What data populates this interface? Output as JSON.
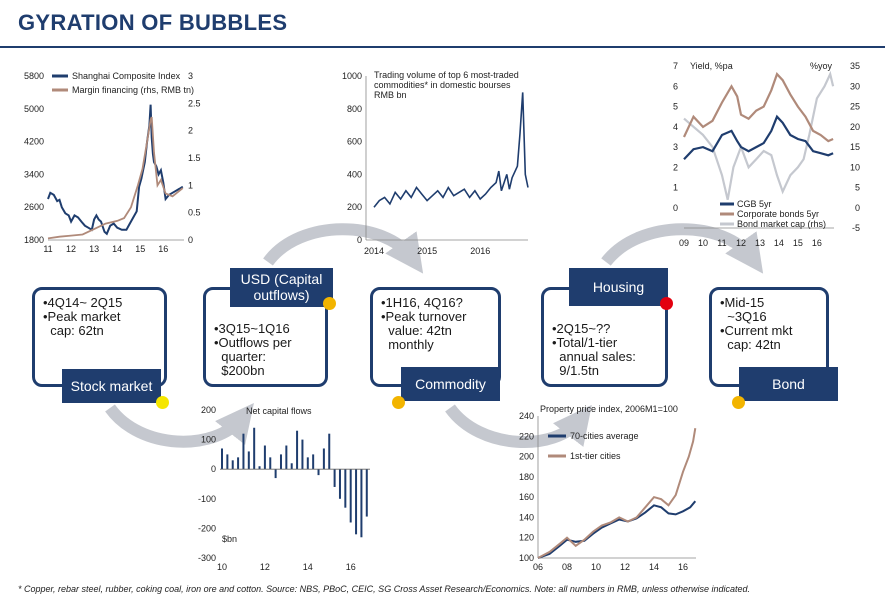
{
  "title": "GYRATION OF BUBBLES",
  "footnote": "* Copper, rebar steel, rubber, coking coal, iron ore and cotton. Source: NBS, PBoC, CEIC, SG Cross Asset Research/Economics. Note: all numbers in RMB, unless otherwise indicated.",
  "colors": {
    "navy": "#1f3d6e",
    "tan": "#b08a7a",
    "gray": "#c5c8cf",
    "yellow": "#f5e600",
    "orange": "#f2b400",
    "red": "#e3000f"
  },
  "stages": [
    {
      "label": "Stock market",
      "lines": [
        "•4Q14~ 2Q15",
        "•Peak market",
        "  cap: 62tn"
      ],
      "dot": "yellow"
    },
    {
      "label": "USD (Capital outflows)",
      "label_lines": [
        "USD (Capital",
        "outflows)"
      ],
      "lines": [
        "•3Q15~1Q16",
        "•Outflows per",
        "  quarter:",
        "  $200bn"
      ],
      "dot": "orange"
    },
    {
      "label": "Commodity",
      "lines": [
        "•1H16, 4Q16?",
        "•Peak turnover",
        "  value: 42tn",
        "  monthly"
      ],
      "dot": "orange"
    },
    {
      "label": "Housing",
      "lines": [
        "•2Q15~??",
        "•Total/1-tier",
        "  annual sales:",
        "  9/1.5tn"
      ],
      "dot": "red"
    },
    {
      "label": "Bond",
      "lines": [
        "•Mid-15",
        "  ~3Q16",
        "•Current mkt",
        "  cap: 42tn"
      ],
      "dot": "orange"
    }
  ],
  "chart_data": [
    {
      "id": "stock",
      "type": "line",
      "x_ticks": [
        "11",
        "12",
        "13",
        "14",
        "15",
        "16"
      ],
      "x_range": [
        2011,
        2016.9
      ],
      "y_left_ticks": [
        "1800",
        "2600",
        "3400",
        "4200",
        "5000",
        "5800"
      ],
      "ylim_left": [
        1800,
        5800
      ],
      "y_right_ticks": [
        "0",
        "0.5",
        "1",
        "1.5",
        "2",
        "2.5",
        "3"
      ],
      "ylim_right": [
        0,
        3
      ],
      "series": [
        {
          "name": "Shanghai Composite Index",
          "axis": "left",
          "color": "#1f3d6e",
          "x": [
            2011.0,
            2011.1,
            2011.25,
            2011.4,
            2011.5,
            2011.6,
            2011.75,
            2011.9,
            2012.0,
            2012.15,
            2012.3,
            2012.45,
            2012.6,
            2012.75,
            2012.9,
            2013.0,
            2013.1,
            2013.2,
            2013.3,
            2013.45,
            2013.55,
            2013.7,
            2013.85,
            2014.0,
            2014.2,
            2014.4,
            2014.55,
            2014.7,
            2014.85,
            2014.95,
            2015.05,
            2015.2,
            2015.3,
            2015.4,
            2015.45,
            2015.5,
            2015.55,
            2015.6,
            2015.7,
            2015.8,
            2015.9,
            2016.0,
            2016.1,
            2016.25,
            2016.4,
            2016.55,
            2016.7,
            2016.85
          ],
          "y": [
            2800,
            2950,
            2900,
            2750,
            2780,
            2600,
            2450,
            2400,
            2250,
            2400,
            2350,
            2250,
            2150,
            2100,
            2050,
            2300,
            2400,
            2300,
            2250,
            2000,
            1950,
            2150,
            2200,
            2100,
            2050,
            2050,
            2200,
            2350,
            2500,
            3100,
            3300,
            3700,
            4200,
            4600,
            5100,
            4300,
            3900,
            3700,
            3600,
            3400,
            3500,
            3200,
            2800,
            2900,
            2950,
            3000,
            3050,
            3100
          ]
        },
        {
          "name": "Margin financing (rhs, RMB tn)",
          "axis": "right",
          "color": "#b08a7a",
          "x": [
            2011.0,
            2011.5,
            2012.0,
            2012.5,
            2013.0,
            2013.5,
            2014.0,
            2014.3,
            2014.6,
            2014.9,
            2015.1,
            2015.3,
            2015.45,
            2015.5,
            2015.6,
            2015.75,
            2015.9,
            2016.1,
            2016.4,
            2016.7,
            2016.85
          ],
          "y": [
            0.03,
            0.06,
            0.08,
            0.1,
            0.2,
            0.3,
            0.35,
            0.4,
            0.6,
            1.0,
            1.3,
            1.8,
            2.2,
            2.25,
            1.6,
            1.0,
            1.1,
            0.85,
            0.8,
            0.9,
            0.95
          ]
        }
      ]
    },
    {
      "id": "commodity",
      "type": "line",
      "annotation": [
        "Trading volume of top 6 most-traded",
        "commodities* in domestic bourses",
        "RMB bn"
      ],
      "x_ticks": [
        "2014",
        "2015",
        "2016"
      ],
      "x_range": [
        2014,
        2016.9
      ],
      "y_ticks": [
        "0",
        "200",
        "400",
        "600",
        "800",
        "1000"
      ],
      "ylim": [
        0,
        1000
      ],
      "series": [
        {
          "name": "Trading volume",
          "color": "#1f3d6e",
          "x": [
            2014.0,
            2014.1,
            2014.2,
            2014.3,
            2014.4,
            2014.5,
            2014.6,
            2014.7,
            2014.8,
            2014.9,
            2015.0,
            2015.1,
            2015.2,
            2015.3,
            2015.4,
            2015.5,
            2015.6,
            2015.7,
            2015.8,
            2015.9,
            2016.0,
            2016.1,
            2016.2,
            2016.3,
            2016.35,
            2016.4,
            2016.45,
            2016.5,
            2016.55,
            2016.6,
            2016.7,
            2016.75,
            2016.8,
            2016.85,
            2016.9
          ],
          "y": [
            200,
            240,
            260,
            220,
            290,
            250,
            300,
            260,
            320,
            280,
            240,
            270,
            300,
            260,
            320,
            270,
            290,
            310,
            260,
            300,
            250,
            280,
            320,
            350,
            420,
            300,
            350,
            400,
            310,
            380,
            450,
            650,
            900,
            400,
            320
          ]
        }
      ]
    },
    {
      "id": "bond",
      "type": "line",
      "y_left_label": "Yield, %pa",
      "y_right_label": "%yoy",
      "x_ticks": [
        "09",
        "10",
        "11",
        "12",
        "13",
        "14",
        "15",
        "16"
      ],
      "x_range": [
        2009,
        2016.9
      ],
      "y_left_ticks": [
        "0",
        "1",
        "2",
        "3",
        "4",
        "5",
        "6",
        "7"
      ],
      "ylim_left": [
        0,
        7
      ],
      "y_right_ticks": [
        "-5",
        "0",
        "5",
        "10",
        "15",
        "20",
        "25",
        "30",
        "35"
      ],
      "ylim_right": [
        -5,
        35
      ],
      "series": [
        {
          "name": "CGB 5yr",
          "axis": "left",
          "color": "#1f3d6e",
          "x": [
            2009.0,
            2009.5,
            2010.0,
            2010.5,
            2011.0,
            2011.5,
            2011.8,
            2012.0,
            2012.4,
            2012.8,
            2013.2,
            2013.6,
            2013.9,
            2014.2,
            2014.6,
            2015.0,
            2015.4,
            2015.8,
            2016.2,
            2016.6,
            2016.85
          ],
          "y": [
            2.4,
            2.9,
            3.0,
            2.8,
            3.6,
            3.8,
            3.3,
            3.0,
            2.8,
            3.0,
            3.2,
            3.8,
            4.5,
            4.2,
            3.6,
            3.4,
            3.3,
            2.8,
            2.7,
            2.6,
            2.7
          ]
        },
        {
          "name": "Corporate bonds 5yr",
          "axis": "left",
          "color": "#b08a7a",
          "x": [
            2009.0,
            2009.5,
            2010.0,
            2010.5,
            2011.0,
            2011.5,
            2011.8,
            2012.0,
            2012.4,
            2012.8,
            2013.2,
            2013.6,
            2013.9,
            2014.2,
            2014.6,
            2015.0,
            2015.4,
            2015.8,
            2016.2,
            2016.6,
            2016.85
          ],
          "y": [
            3.5,
            4.5,
            4.0,
            4.3,
            5.2,
            6.0,
            5.5,
            4.6,
            4.4,
            4.8,
            5.0,
            5.8,
            6.6,
            6.3,
            5.6,
            5.0,
            4.5,
            3.8,
            3.6,
            3.3,
            3.4
          ]
        },
        {
          "name": "Bond market cap (rhs)",
          "axis": "right",
          "color": "#c5c8cf",
          "x": [
            2009.0,
            2009.5,
            2010.0,
            2010.5,
            2011.0,
            2011.3,
            2011.6,
            2012.0,
            2012.4,
            2012.8,
            2013.2,
            2013.6,
            2013.9,
            2014.2,
            2014.6,
            2015.0,
            2015.3,
            2015.6,
            2016.0,
            2016.4,
            2016.7,
            2016.85
          ],
          "y": [
            22,
            20,
            18,
            15,
            8,
            2,
            10,
            15,
            10,
            12,
            14,
            13,
            8,
            4,
            8,
            10,
            12,
            18,
            27,
            30,
            33,
            30
          ]
        }
      ]
    },
    {
      "id": "capital",
      "type": "bar",
      "title": "Net capital flows",
      "ylabel": "$bn",
      "x_ticks": [
        "10",
        "12",
        "14",
        "16"
      ],
      "x_range": [
        2010,
        2016.9
      ],
      "y_ticks": [
        "-300",
        "-200",
        "-100",
        "0",
        "100",
        "200"
      ],
      "ylim": [
        -300,
        200
      ],
      "bar_x": [
        2010.0,
        2010.25,
        2010.5,
        2010.75,
        2011.0,
        2011.25,
        2011.5,
        2011.75,
        2012.0,
        2012.25,
        2012.5,
        2012.75,
        2013.0,
        2013.25,
        2013.5,
        2013.75,
        2014.0,
        2014.25,
        2014.5,
        2014.75,
        2015.0,
        2015.25,
        2015.5,
        2015.75,
        2016.0,
        2016.25,
        2016.5,
        2016.75
      ],
      "values": [
        70,
        50,
        30,
        40,
        120,
        60,
        140,
        10,
        80,
        40,
        -30,
        50,
        80,
        20,
        130,
        100,
        40,
        50,
        -20,
        70,
        120,
        -60,
        -100,
        -130,
        -180,
        -220,
        -230,
        -160
      ]
    },
    {
      "id": "property",
      "type": "line",
      "title": "Property price index, 2006M1=100",
      "x_ticks": [
        "06",
        "08",
        "10",
        "12",
        "14",
        "16"
      ],
      "x_range": [
        2006,
        2016.9
      ],
      "y_ticks": [
        "100",
        "120",
        "140",
        "160",
        "180",
        "200",
        "220",
        "240"
      ],
      "ylim": [
        100,
        240
      ],
      "series": [
        {
          "name": "70-cities average",
          "color": "#1f3d6e",
          "x": [
            2006.0,
            2006.8,
            2007.5,
            2008.0,
            2008.6,
            2009.2,
            2009.8,
            2010.4,
            2011.0,
            2011.6,
            2012.2,
            2012.8,
            2013.4,
            2014.0,
            2014.5,
            2015.0,
            2015.5,
            2016.0,
            2016.5,
            2016.85
          ],
          "y": [
            100,
            104,
            112,
            118,
            116,
            117,
            124,
            130,
            134,
            138,
            136,
            139,
            145,
            152,
            150,
            144,
            143,
            146,
            150,
            156
          ]
        },
        {
          "name": "1st-tier cities",
          "color": "#b08a7a",
          "x": [
            2006.0,
            2006.8,
            2007.5,
            2008.0,
            2008.6,
            2009.2,
            2009.8,
            2010.4,
            2011.0,
            2011.6,
            2012.2,
            2012.8,
            2013.4,
            2014.0,
            2014.5,
            2015.0,
            2015.5,
            2016.0,
            2016.4,
            2016.7,
            2016.85
          ],
          "y": [
            100,
            106,
            114,
            120,
            112,
            118,
            126,
            132,
            135,
            140,
            136,
            140,
            150,
            160,
            158,
            152,
            162,
            185,
            200,
            215,
            228
          ]
        }
      ]
    }
  ]
}
